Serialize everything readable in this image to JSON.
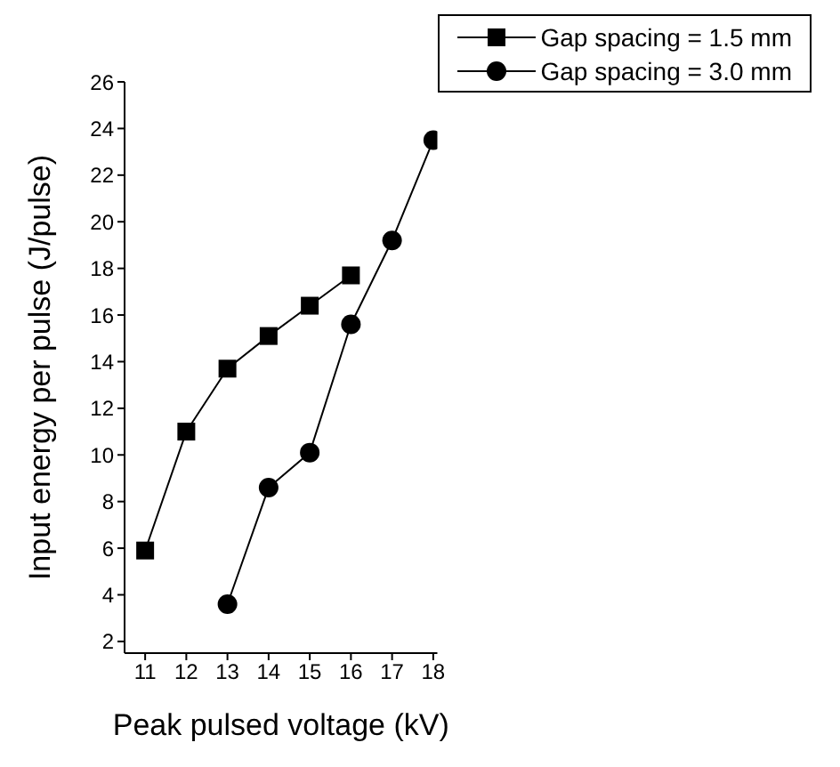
{
  "chart_data": {
    "type": "line",
    "xlabel": "Peak pulsed voltage (kV)",
    "ylabel": "Input energy per pulse (J/pulse)",
    "xlim": [
      10.5,
      18.1
    ],
    "xticks": [
      11,
      12,
      13,
      14,
      15,
      16,
      17,
      18
    ],
    "ylim": [
      1.5,
      26
    ],
    "yticks": [
      2,
      4,
      6,
      8,
      10,
      12,
      14,
      16,
      18,
      20,
      22,
      24,
      26
    ],
    "grid": false,
    "legend": "top right",
    "series": [
      {
        "name": "Gap spacing = 1.5 mm",
        "color": "#000000",
        "marker": "square",
        "x": [
          11,
          12,
          13,
          14,
          15,
          16
        ],
        "values": [
          5.9,
          11.0,
          13.7,
          15.1,
          16.4,
          17.7
        ]
      },
      {
        "name": "Gap spacing = 3.0 mm",
        "color": "#000000",
        "marker": "circle",
        "x": [
          13,
          14,
          15,
          16,
          17,
          18
        ],
        "values": [
          3.6,
          8.6,
          10.1,
          15.6,
          19.2,
          23.5
        ]
      }
    ]
  }
}
